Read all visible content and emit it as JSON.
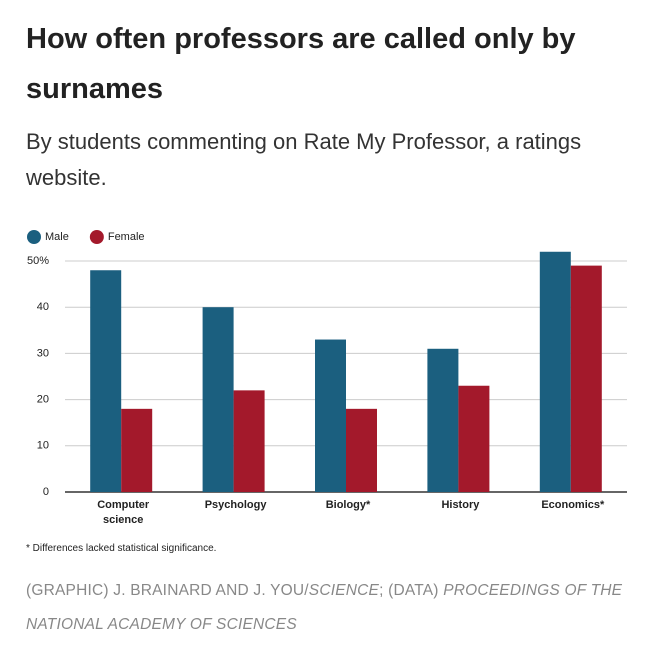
{
  "chart_data": {
    "type": "bar",
    "title": "How often professors are called only by surnames",
    "subtitle": "By students commenting on Rate My Professor, a ratings website.",
    "categories": [
      "Computer science",
      "Psychology",
      "Biology*",
      "History",
      "Economics*"
    ],
    "series": [
      {
        "name": "Male",
        "color": "#1b5f7f",
        "values": [
          48,
          40,
          33,
          31,
          52
        ]
      },
      {
        "name": "Female",
        "color": "#a3192b",
        "values": [
          18,
          22,
          18,
          23,
          49
        ]
      }
    ],
    "ylim": [
      0,
      50
    ],
    "yticks": [
      0,
      10,
      20,
      30,
      40,
      {
        "value": 50,
        "label": "50%"
      }
    ],
    "grid": true,
    "legend": "top-left",
    "footnote": "* Differences lacked statistical significance.",
    "source": [
      "(GRAPHIC) J. BRAINARD AND J. YOU/",
      "SCIENCE",
      "; (DATA) ",
      "PROCEEDINGS OF THE NATIONAL ACADEMY OF SCIENCES"
    ]
  }
}
